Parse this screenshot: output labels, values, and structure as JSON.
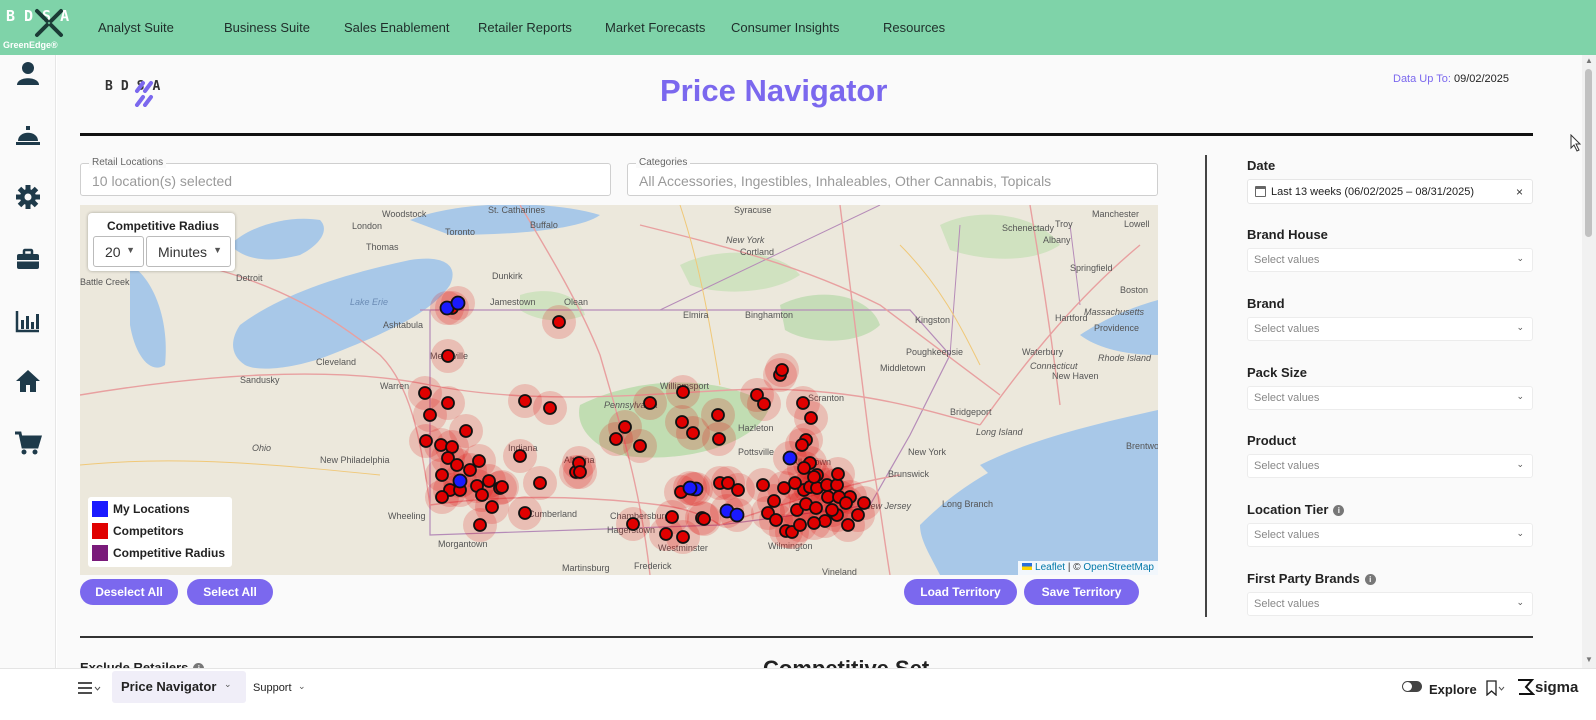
{
  "brand": {
    "letters": "BDSA",
    "tagline": "GreenEdge®"
  },
  "nav": [
    "Analyst Suite",
    "Business Suite",
    "Sales Enablement",
    "Retailer Reports",
    "Market Forecasts",
    "Consumer Insights",
    "Resources"
  ],
  "rail_icons": [
    "user-icon",
    "service-bell-icon",
    "gear-icon",
    "briefcase-icon",
    "bar-chart-icon",
    "home-icon",
    "shopping-cart-icon"
  ],
  "page": {
    "logo_letters": "BDSA",
    "title": "Price Navigator",
    "data_up_label": "Data Up To:",
    "data_up_value": "09/02/2025"
  },
  "filters_top": {
    "retail_locations": {
      "label": "Retail Locations",
      "value": "10 location(s) selected"
    },
    "categories": {
      "label": "Categories",
      "value": "All Accessories, Ingestibles, Inhaleables, Other Cannabis, Topicals"
    }
  },
  "map": {
    "radius_title": "Competitive Radius",
    "radius_value": "20",
    "radius_unit": "Minutes",
    "legend": [
      {
        "label": "My Locations",
        "color": "#1a1aff"
      },
      {
        "label": "Competitors",
        "color": "#e00000"
      },
      {
        "label": "Competitive Radius",
        "color": "#7a1a7a"
      }
    ],
    "attribution": {
      "leaflet": "Leaflet",
      "sep": "| ©",
      "osm": "OpenStreetMap"
    },
    "place_labels": [
      "Woodstock",
      "St. Catharines",
      "Buffalo",
      "Syracuse",
      "Schenectady",
      "Albany",
      "Manchester",
      "Lowell",
      "London",
      "Toronto",
      "Thomas",
      "Dunkirk",
      "Cortland",
      "New York",
      "Troy",
      "Springfield",
      "Boston",
      "Detroit",
      "Jamestown",
      "Olean",
      "Elmira",
      "Binghamton",
      "Hartford",
      "Providence",
      "Massachusetts",
      "Lake Erie",
      "Ashtabula",
      "Kingston",
      "Poughkeepsie",
      "Waterbury",
      "Rhode Island",
      "New Haven",
      "Cleveland",
      "Meadville",
      "Middletown",
      "Connecticut",
      "Sandusky",
      "Warren",
      "Pennsylvania",
      "Scranton",
      "Bridgeport",
      "Long Island",
      "Brentwood",
      "Hazleton",
      "Williamsport",
      "Indiana",
      "Altoona",
      "Pottsville",
      "Allentown",
      "New York",
      "Ohio",
      "New Philadelphia",
      "Wheeling",
      "Cumberland",
      "Chambersburg",
      "Hagerstown",
      "Westminster",
      "Frederick",
      "Martinsburg",
      "Morgantown",
      "Wilmington",
      "Brunswick",
      "Long Branch",
      "New Jersey",
      "Vineland",
      "Battle Creek"
    ]
  },
  "buttons": {
    "deselect_all": "Deselect All",
    "select_all": "Select All",
    "load_territory": "Load Territory",
    "save_territory": "Save Territory"
  },
  "side_filters": {
    "date_label": "Date",
    "date_value": "Last 13 weeks (06/02/2025 – 08/31/2025)",
    "clear": "×",
    "placeholder": "Select values",
    "items": [
      "Brand House",
      "Brand",
      "Pack Size",
      "Product",
      "Location Tier",
      "First Party Brands"
    ]
  },
  "sections": {
    "exclude_retailers": "Exclude Retailers",
    "competitive_set": "Competitive Set"
  },
  "bottom": {
    "page_tab": "Price Navigator",
    "support": "Support",
    "explore": "Explore",
    "sigma": "sigma"
  }
}
